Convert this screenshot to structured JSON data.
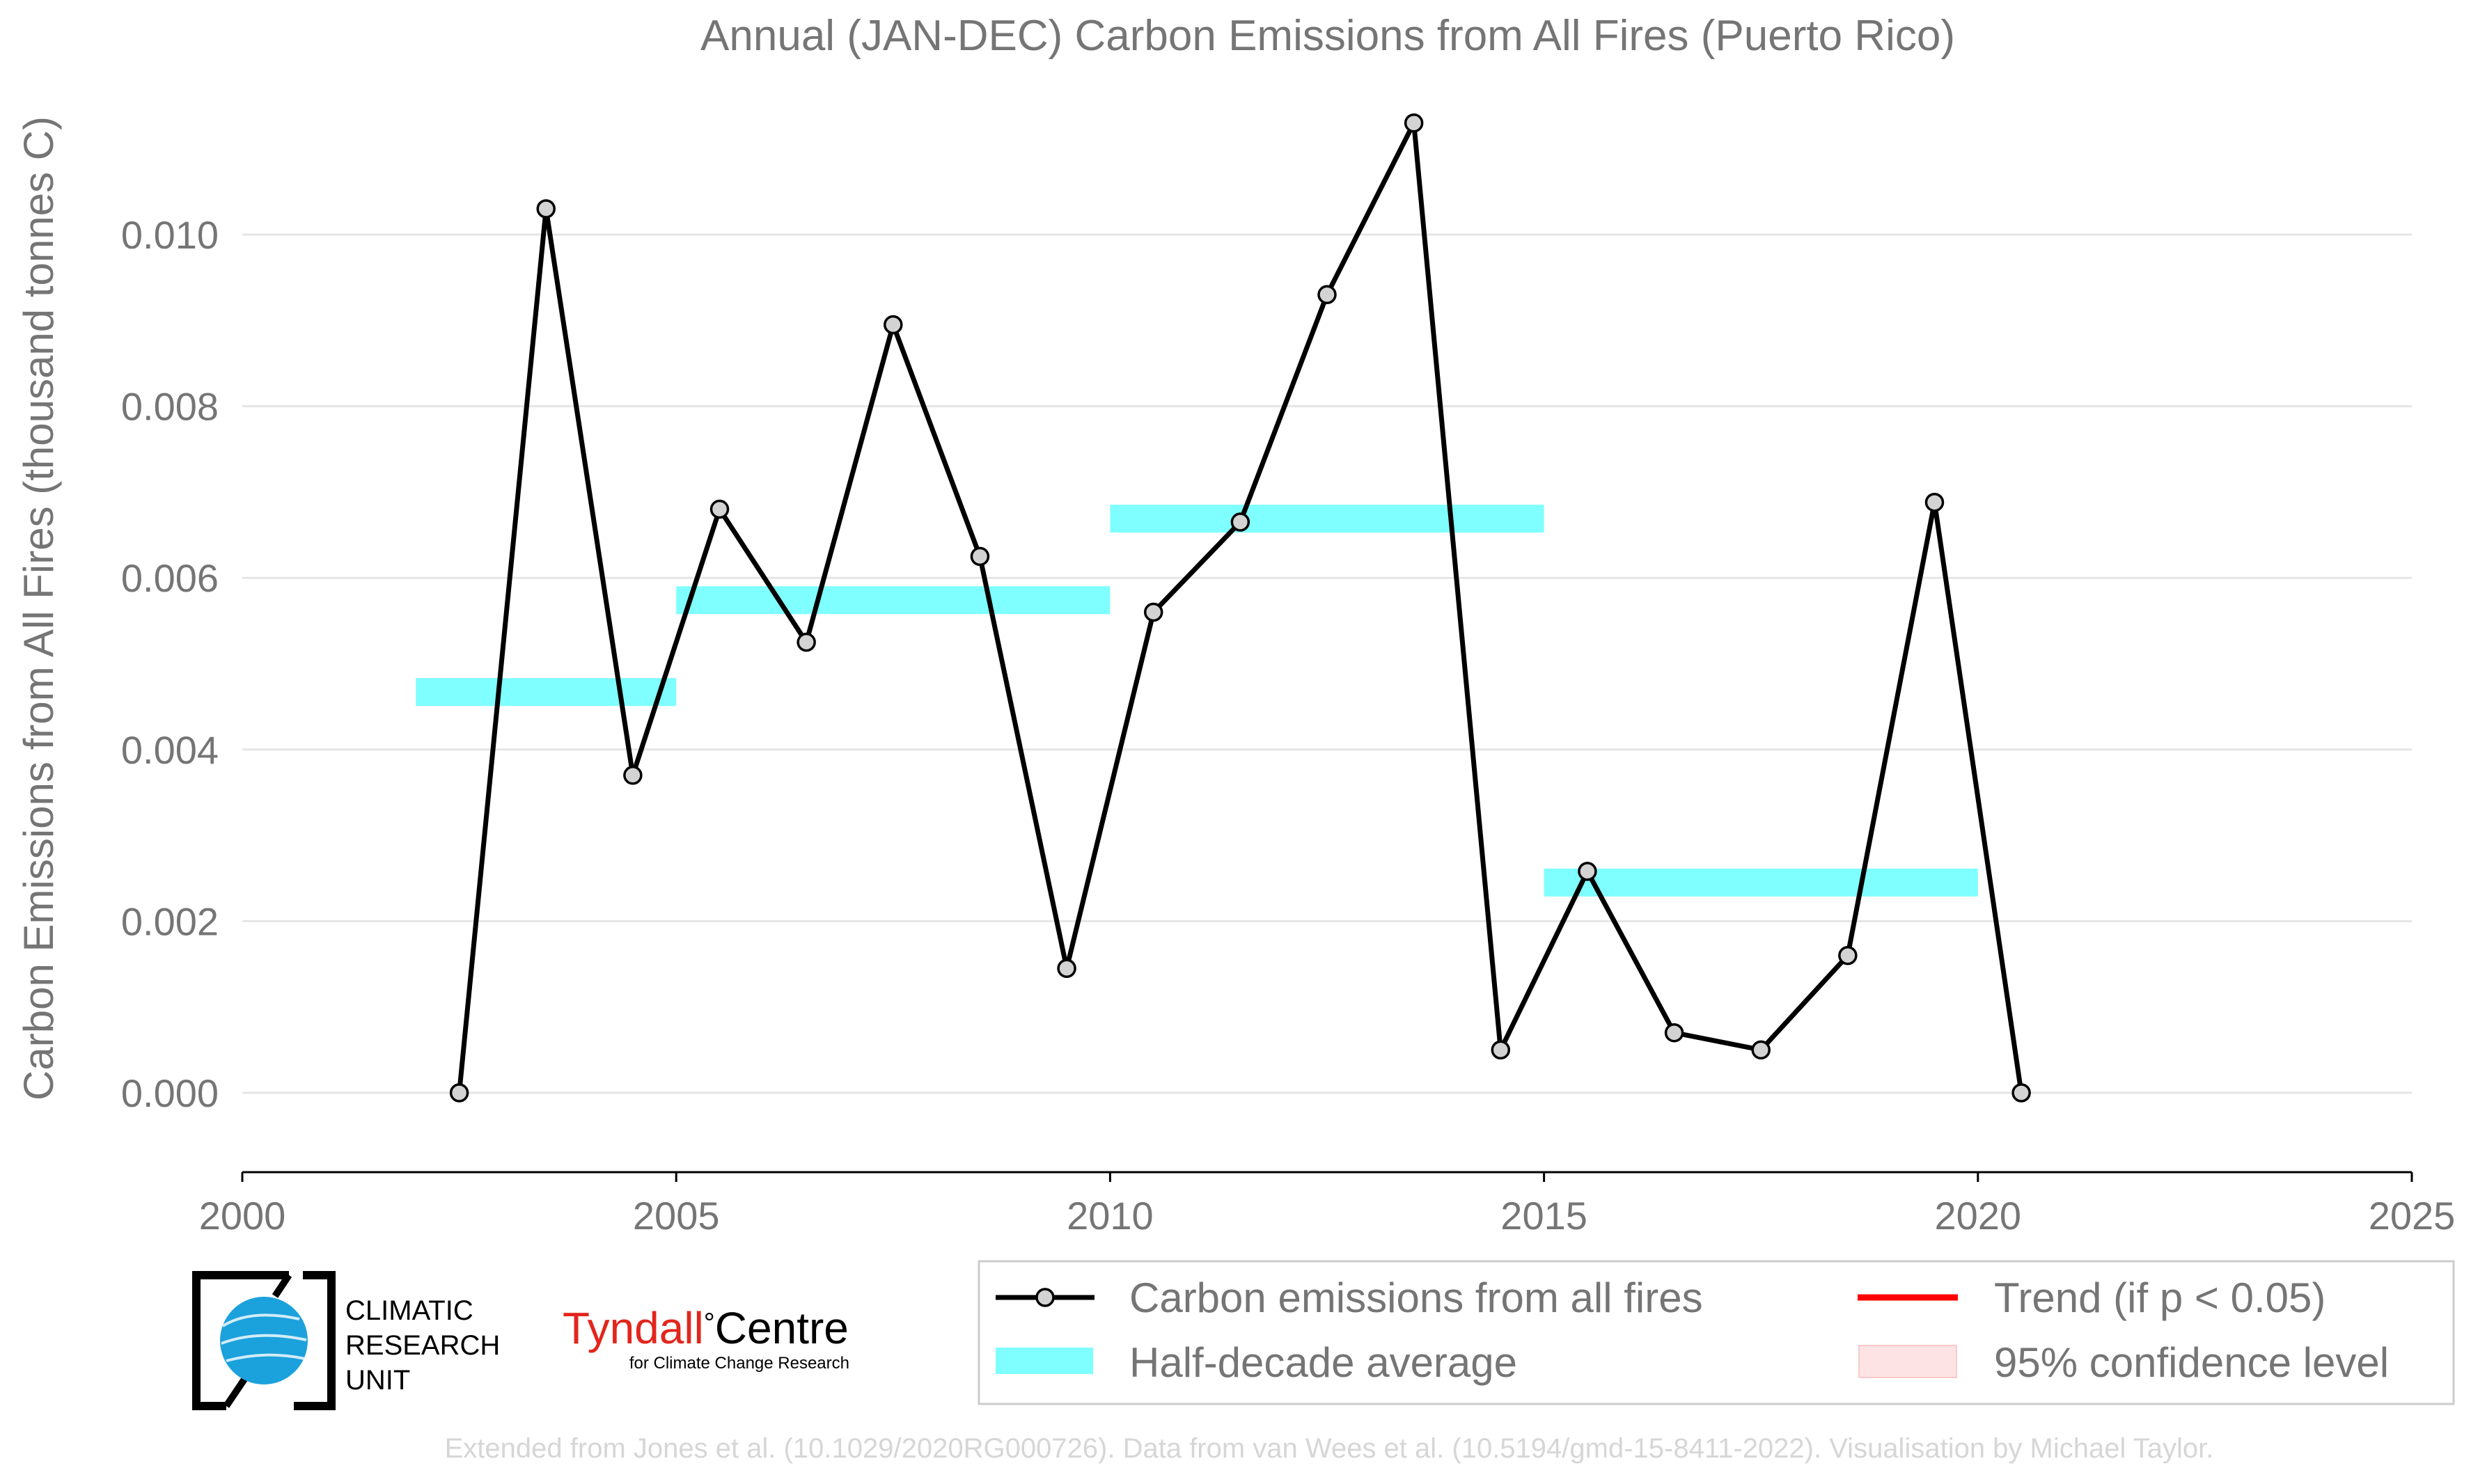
{
  "chart_data": {
    "type": "line",
    "title": "Annual (JAN-DEC) Carbon Emissions from All Fires (Puerto Rico)",
    "xlabel": "",
    "ylabel": "Carbon Emissions from All Fires (thousand tonnes C)",
    "xlim": [
      2000,
      2025
    ],
    "ylim": [
      -0.0008,
      0.0115
    ],
    "x_ticks": [
      "2000",
      "2005",
      "2010",
      "2015",
      "2020",
      "2025"
    ],
    "y_ticks": [
      "0.000",
      "0.002",
      "0.004",
      "0.006",
      "0.008",
      "0.010"
    ],
    "grid": "horizontal",
    "series": [
      {
        "name": "Carbon emissions from all fires",
        "color": "#000000",
        "marker_fill": "#d3d3d3",
        "x": [
          2002.5,
          2003.5,
          2004.5,
          2005.5,
          2006.5,
          2007.5,
          2008.5,
          2009.5,
          2010.5,
          2011.5,
          2012.5,
          2013.5,
          2014.5,
          2015.5,
          2016.5,
          2017.5,
          2018.5,
          2019.5,
          2020.5
        ],
        "y": [
          0.0,
          0.0103,
          0.0037,
          0.0068,
          0.00525,
          0.00895,
          0.00625,
          0.00145,
          0.0056,
          0.00665,
          0.0093,
          0.0113,
          0.0005,
          0.00258,
          0.0007,
          0.0005,
          0.0016,
          0.00688,
          0.0
        ]
      }
    ],
    "half_decade_average": {
      "name": "Half-decade average",
      "color": "#7fffff",
      "segments": [
        {
          "x0": 2002,
          "x1": 2005,
          "y": 0.00467
        },
        {
          "x0": 2005,
          "x1": 2010,
          "y": 0.00574
        },
        {
          "x0": 2010,
          "x1": 2015,
          "y": 0.00669
        },
        {
          "x0": 2015,
          "x1": 2020,
          "y": 0.00245
        }
      ]
    },
    "legend": {
      "placement": "bottom-right",
      "entries": [
        {
          "label": "Carbon emissions from all fires",
          "kind": "line-marker",
          "color": "#000000"
        },
        {
          "label": "Trend (if p < 0.05)",
          "kind": "line",
          "color": "#ff0000"
        },
        {
          "label": "Half-decade average",
          "kind": "band",
          "color": "#7fffff"
        },
        {
          "label": "95% confidence level",
          "kind": "patch",
          "color": "#fde3e3"
        }
      ]
    }
  },
  "logos": {
    "cru_lines": [
      "CLIMATIC",
      "RESEARCH",
      "UNIT"
    ],
    "tyndall_main": "Tyndall",
    "tyndall_degree": "°",
    "tyndall_centre": "Centre",
    "tyndall_sub": "for Climate Change Research"
  },
  "footer": "Extended from Jones et al. (10.1029/2020RG000726). Data from van Wees et al. (10.5194/gmd-15-8411-2022). Visualisation by Michael Taylor."
}
